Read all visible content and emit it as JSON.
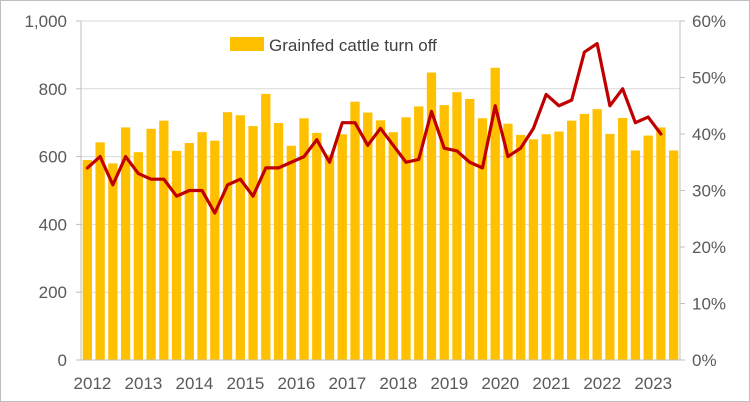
{
  "chart_data": {
    "type": "bar+line",
    "legend": {
      "entries": [
        "Grainfed cattle turn off"
      ],
      "placement": "top-center"
    },
    "x_labels": [
      "2012",
      "2013",
      "2014",
      "2015",
      "2016",
      "2017",
      "2018",
      "2019",
      "2020",
      "2021",
      "2022",
      "2023"
    ],
    "left_axis": {
      "range": [
        0,
        1000
      ],
      "ticks": [
        "0",
        "200",
        "400",
        "600",
        "800",
        "1,000"
      ],
      "tick_values": [
        0,
        200,
        400,
        600,
        800,
        1000
      ]
    },
    "right_axis": {
      "range": [
        0,
        60
      ],
      "ticks": [
        "0%",
        "10%",
        "20%",
        "30%",
        "40%",
        "50%",
        "60%"
      ],
      "tick_values": [
        0,
        10,
        20,
        30,
        40,
        50,
        60
      ]
    },
    "series": [
      {
        "name": "Grainfed cattle turn off",
        "type": "bar",
        "axis": "left",
        "color": "#FFC000",
        "values": [
          590,
          642,
          580,
          686,
          613,
          682,
          706,
          617,
          640,
          672,
          647,
          731,
          722,
          690,
          785,
          699,
          632,
          713,
          670,
          605,
          666,
          762,
          730,
          707,
          672,
          716,
          748,
          848,
          752,
          790,
          770,
          713,
          862,
          697,
          664,
          651,
          666,
          674,
          706,
          726,
          740,
          667,
          714,
          618,
          662,
          686,
          618
        ]
      },
      {
        "name": "",
        "type": "line",
        "axis": "right",
        "color": "#C00000",
        "values": [
          34,
          36,
          31,
          36,
          33,
          32,
          32,
          29,
          30,
          30,
          26,
          31,
          32,
          29,
          34,
          34,
          35,
          36,
          39,
          35,
          42,
          42,
          38,
          41,
          38,
          35,
          35.5,
          44,
          37.5,
          37,
          35,
          34,
          45,
          36,
          37.5,
          41,
          47,
          45,
          46,
          54.5,
          56,
          45,
          48,
          42,
          43,
          40
        ]
      }
    ]
  }
}
